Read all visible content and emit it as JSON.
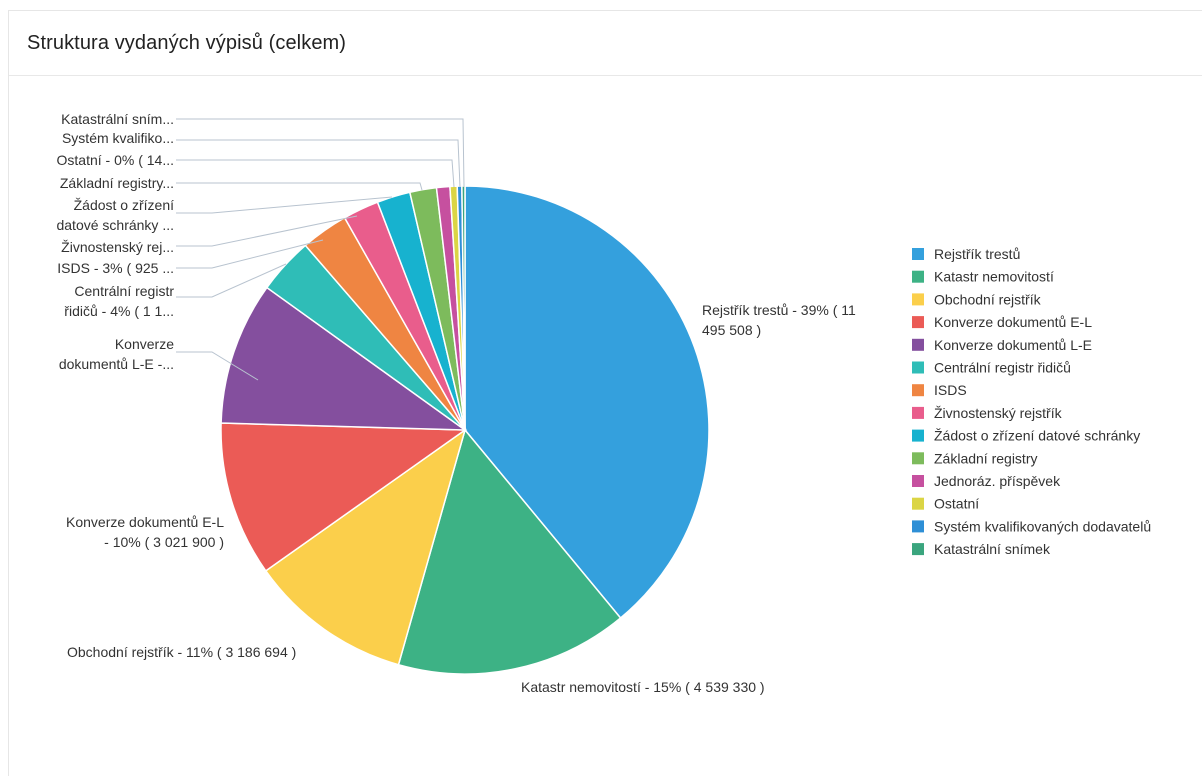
{
  "panel": {
    "title": "Struktura vydaných výpisů (celkem)"
  },
  "chart_data": {
    "type": "pie",
    "title": "Struktura vydaných výpisů (celkem)",
    "legend_position": "right",
    "slices": [
      {
        "name": "Rejstřík trestů",
        "value": 11495508,
        "color": "#34a0dd",
        "label": [
          "Rejstřík trestů - 39% ( 11",
          "495 508 )"
        ]
      },
      {
        "name": "Katastr nemovitostí",
        "value": 4539330,
        "color": "#3db285",
        "label": [
          "Katastr nemovitostí - 15% ( 4 539 330 )"
        ]
      },
      {
        "name": "Obchodní rejstřík",
        "value": 3186694,
        "color": "#fbcf4b",
        "label": [
          "Obchodní rejstřík - 11% ( 3 186 694 )"
        ]
      },
      {
        "name": "Konverze dokumentů E-L",
        "value": 3021900,
        "color": "#eb5b56",
        "label": [
          "Konverze dokumentů E-L",
          "- 10% ( 3 021 900 )"
        ]
      },
      {
        "name": "Konverze dokumentů L-E",
        "value": 2790000,
        "color": "#844f9e",
        "label": [
          "Konverze",
          "dokumentů L-E -..."
        ]
      },
      {
        "name": "Centrální registr řidičů",
        "value": 1100000,
        "color": "#2fbdb7",
        "label": [
          "Centrální registr",
          "řidičů - 4% ( 1 1..."
        ]
      },
      {
        "name": "ISDS",
        "value": 925000,
        "color": "#ef8542",
        "label": [
          "ISDS - 3% ( 925 ..."
        ]
      },
      {
        "name": "Živnostenský rejstřík",
        "value": 700000,
        "color": "#e95d8c",
        "label": [
          "Živnostenský rej..."
        ]
      },
      {
        "name": "Žádost o zřízení datové schránky",
        "value": 650000,
        "color": "#17b2cf",
        "label": [
          "Žádost o zřízení",
          "datové schránky ..."
        ]
      },
      {
        "name": "Základní registry",
        "value": 520000,
        "color": "#7dbb5c",
        "label": [
          "Základní registry..."
        ]
      },
      {
        "name": "Jednoráz. příspěvek",
        "value": 260000,
        "color": "#c6509f",
        "label": []
      },
      {
        "name": "Ostatní",
        "value": 140000,
        "color": "#dbd545",
        "label": [
          "Ostatní - 0% ( 14..."
        ]
      },
      {
        "name": "Systém kvalifikovaných dodavatelů",
        "value": 90000,
        "color": "#2e8fd6",
        "label": [
          "Systém kvalifiko..."
        ]
      },
      {
        "name": "Katastrální snímek",
        "value": 60000,
        "color": "#3aa57e",
        "label": [
          "Katastrální sním..."
        ]
      }
    ]
  }
}
